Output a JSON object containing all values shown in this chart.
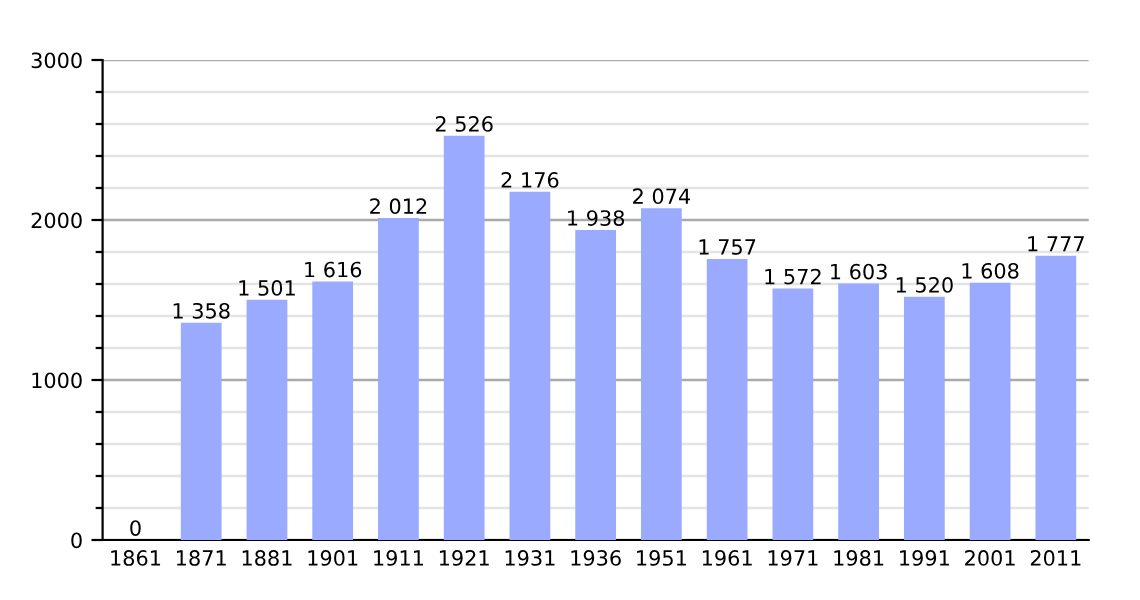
{
  "chart_data": {
    "type": "bar",
    "categories": [
      "1861",
      "1871",
      "1881",
      "1901",
      "1911",
      "1921",
      "1931",
      "1936",
      "1951",
      "1961",
      "1971",
      "1981",
      "1991",
      "2001",
      "2011"
    ],
    "values": [
      0,
      1358,
      1501,
      1616,
      2012,
      2526,
      2176,
      1938,
      2074,
      1757,
      1572,
      1603,
      1520,
      1608,
      1777
    ],
    "value_labels": [
      "0",
      "1 358",
      "1 501",
      "1 616",
      "2 012",
      "2 526",
      "2 176",
      "1 938",
      "2 074",
      "1 757",
      "1 572",
      "1 603",
      "1 520",
      "1 608",
      "1 777"
    ],
    "color": "#99aaff",
    "ylim": [
      0,
      3000
    ],
    "yticks": [
      0,
      {
        "value": 200,
        "label": null
      },
      {
        "value": 400,
        "label": null
      },
      {
        "value": 600,
        "label": null
      },
      {
        "value": 800,
        "label": null
      },
      1000,
      {
        "value": 1200,
        "label": null
      },
      {
        "value": 1400,
        "label": null
      },
      {
        "value": 1600,
        "label": null
      },
      {
        "value": 1800,
        "label": null
      },
      2000,
      {
        "value": 2200,
        "label": null
      },
      {
        "value": 2400,
        "label": null
      },
      {
        "value": 2600,
        "label": null
      },
      {
        "value": 2800,
        "label": null
      },
      3000
    ],
    "grid": "y"
  }
}
